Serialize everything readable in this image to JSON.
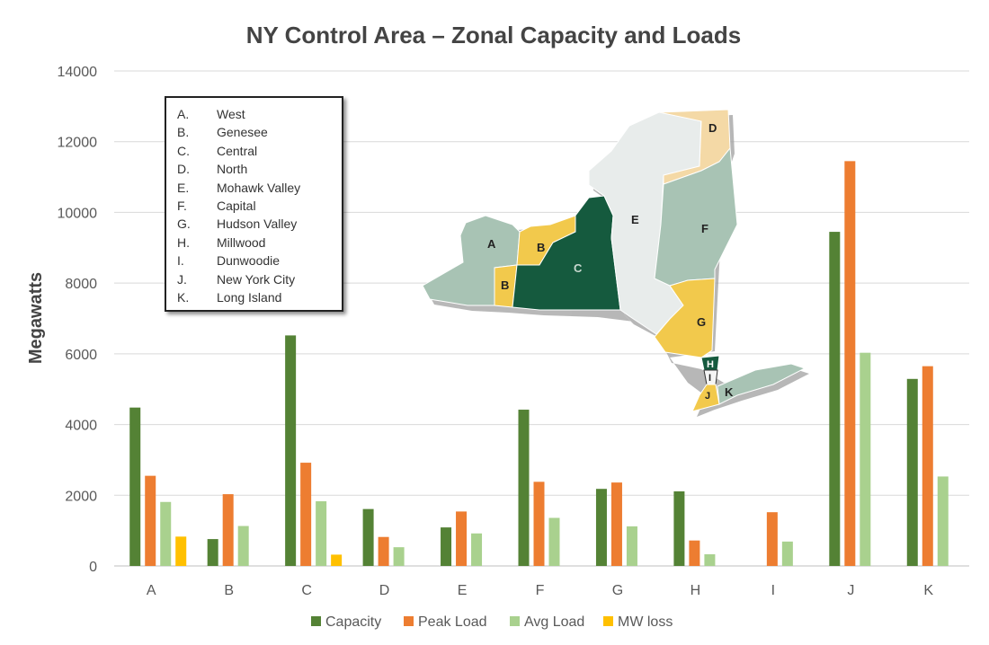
{
  "chart_data": {
    "type": "bar",
    "title": "NY Control Area – Zonal Capacity and Loads",
    "xlabel": "",
    "ylabel": "Megawatts",
    "ylim": [
      0,
      14000
    ],
    "yticks": [
      0,
      2000,
      4000,
      6000,
      8000,
      10000,
      12000,
      14000
    ],
    "grid": true,
    "legend_position": "bottom",
    "categories": [
      "A",
      "B",
      "C",
      "D",
      "E",
      "F",
      "G",
      "H",
      "I",
      "J",
      "K"
    ],
    "series": [
      {
        "name": "Capacity",
        "color": "#548235",
        "values": [
          4480,
          760,
          6520,
          1610,
          1090,
          4420,
          2180,
          2110,
          0,
          9450,
          5290
        ]
      },
      {
        "name": "Peak Load",
        "color": "#ED7D31",
        "values": [
          2550,
          2030,
          2920,
          820,
          1540,
          2380,
          2360,
          720,
          1520,
          11450,
          5650
        ]
      },
      {
        "name": "Avg Load",
        "color": "#A9D18E",
        "values": [
          1810,
          1130,
          1830,
          530,
          920,
          1360,
          1120,
          330,
          690,
          6030,
          2530
        ]
      },
      {
        "name": "MW loss",
        "color": "#FFC000",
        "values": [
          830,
          0,
          320,
          0,
          0,
          0,
          0,
          0,
          0,
          0,
          0
        ]
      }
    ]
  },
  "zone_key": [
    {
      "letter": "A.",
      "name": "West"
    },
    {
      "letter": "B.",
      "name": "Genesee"
    },
    {
      "letter": "C.",
      "name": "Central"
    },
    {
      "letter": "D.",
      "name": "North"
    },
    {
      "letter": "E.",
      "name": "Mohawk Valley"
    },
    {
      "letter": "F.",
      "name": "Capital"
    },
    {
      "letter": "G.",
      "name": "Hudson Valley"
    },
    {
      "letter": "H.",
      "name": "Millwood"
    },
    {
      "letter": "I.",
      "name": "Dunwoodie"
    },
    {
      "letter": "J.",
      "name": "New York City"
    },
    {
      "letter": "K.",
      "name": "Long Island"
    }
  ],
  "map_labels": {
    "A": "A",
    "B1": "B",
    "B2": "B",
    "C": "C",
    "D": "D",
    "E": "E",
    "F": "F",
    "G": "G",
    "H": "H",
    "I": "I",
    "J": "J",
    "K": "K"
  }
}
